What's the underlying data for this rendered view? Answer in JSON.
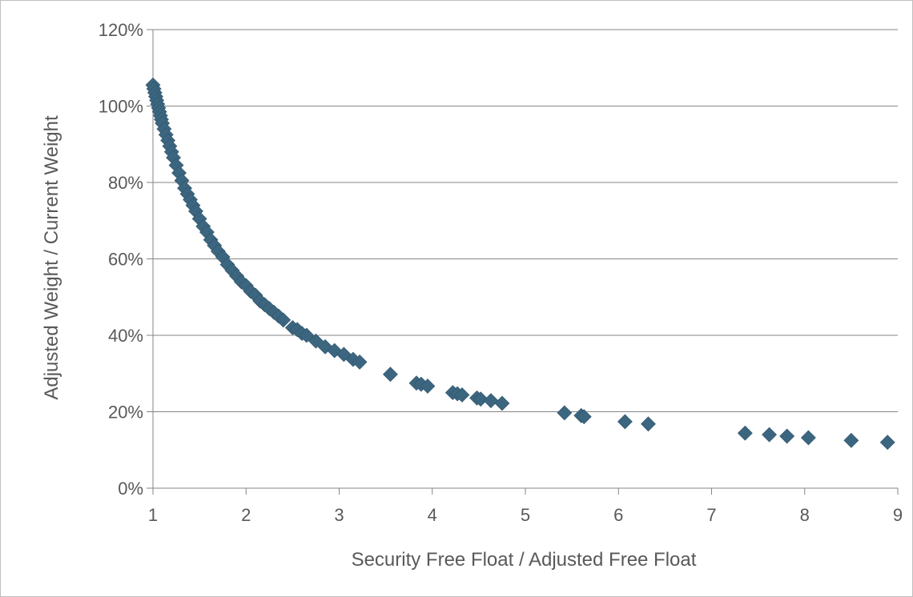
{
  "chart_data": {
    "type": "scatter",
    "title": "",
    "xlabel": "Security Free Float / Adjusted Free Float",
    "ylabel": "Adjusted Weight / Current Weight",
    "xlim": [
      1,
      9
    ],
    "ylim": [
      0,
      1.2
    ],
    "x_ticks": [
      1,
      2,
      3,
      4,
      5,
      6,
      7,
      8,
      9
    ],
    "x_tick_labels": [
      "1",
      "2",
      "3",
      "4",
      "5",
      "6",
      "7",
      "8",
      "9"
    ],
    "y_ticks": [
      0,
      0.2,
      0.4,
      0.6,
      0.8,
      1.0,
      1.2
    ],
    "y_tick_labels": [
      "0%",
      "20%",
      "40%",
      "60%",
      "80%",
      "100%",
      "120%"
    ],
    "grid": "horizontal",
    "legend": "none",
    "marker": "diamond",
    "marker_color": "#3c6680",
    "series": [
      {
        "points": [
          [
            1.0,
            1.055
          ],
          [
            1.01,
            1.045
          ],
          [
            1.02,
            1.035
          ],
          [
            1.03,
            1.025
          ],
          [
            1.04,
            1.015
          ],
          [
            1.05,
            1.005
          ],
          [
            1.06,
            0.995
          ],
          [
            1.07,
            0.985
          ],
          [
            1.08,
            0.975
          ],
          [
            1.09,
            0.965
          ],
          [
            1.1,
            0.955
          ],
          [
            1.12,
            0.94
          ],
          [
            1.14,
            0.925
          ],
          [
            1.16,
            0.91
          ],
          [
            1.18,
            0.895
          ],
          [
            1.2,
            0.88
          ],
          [
            1.22,
            0.865
          ],
          [
            1.25,
            0.845
          ],
          [
            1.28,
            0.825
          ],
          [
            1.31,
            0.805
          ],
          [
            1.34,
            0.785
          ],
          [
            1.37,
            0.77
          ],
          [
            1.4,
            0.755
          ],
          [
            1.43,
            0.74
          ],
          [
            1.46,
            0.725
          ],
          [
            1.5,
            0.705
          ],
          [
            1.54,
            0.685
          ],
          [
            1.58,
            0.67
          ],
          [
            1.62,
            0.65
          ],
          [
            1.66,
            0.635
          ],
          [
            1.7,
            0.62
          ],
          [
            1.75,
            0.605
          ],
          [
            1.8,
            0.585
          ],
          [
            1.85,
            0.57
          ],
          [
            1.9,
            0.555
          ],
          [
            1.95,
            0.54
          ],
          [
            2.0,
            0.53
          ],
          [
            2.05,
            0.515
          ],
          [
            2.1,
            0.505
          ],
          [
            2.15,
            0.49
          ],
          [
            2.2,
            0.48
          ],
          [
            2.25,
            0.47
          ],
          [
            2.3,
            0.46
          ],
          [
            2.35,
            0.45
          ],
          [
            2.4,
            0.44
          ],
          [
            2.5,
            0.42
          ],
          [
            2.55,
            0.415
          ],
          [
            2.6,
            0.405
          ],
          [
            2.65,
            0.4
          ],
          [
            2.75,
            0.385
          ],
          [
            2.85,
            0.37
          ],
          [
            2.95,
            0.36
          ],
          [
            3.05,
            0.35
          ],
          [
            3.15,
            0.337
          ],
          [
            3.22,
            0.33
          ],
          [
            3.55,
            0.298
          ],
          [
            3.83,
            0.275
          ],
          [
            3.88,
            0.272
          ],
          [
            3.95,
            0.267
          ],
          [
            4.22,
            0.25
          ],
          [
            4.27,
            0.247
          ],
          [
            4.32,
            0.244
          ],
          [
            4.48,
            0.236
          ],
          [
            4.52,
            0.233
          ],
          [
            4.63,
            0.229
          ],
          [
            4.75,
            0.222
          ],
          [
            5.42,
            0.197
          ],
          [
            5.6,
            0.19
          ],
          [
            5.63,
            0.187
          ],
          [
            6.07,
            0.174
          ],
          [
            6.32,
            0.168
          ],
          [
            7.36,
            0.144
          ],
          [
            7.62,
            0.14
          ],
          [
            7.81,
            0.136
          ],
          [
            8.04,
            0.132
          ],
          [
            8.5,
            0.125
          ],
          [
            8.89,
            0.12
          ]
        ]
      }
    ]
  }
}
